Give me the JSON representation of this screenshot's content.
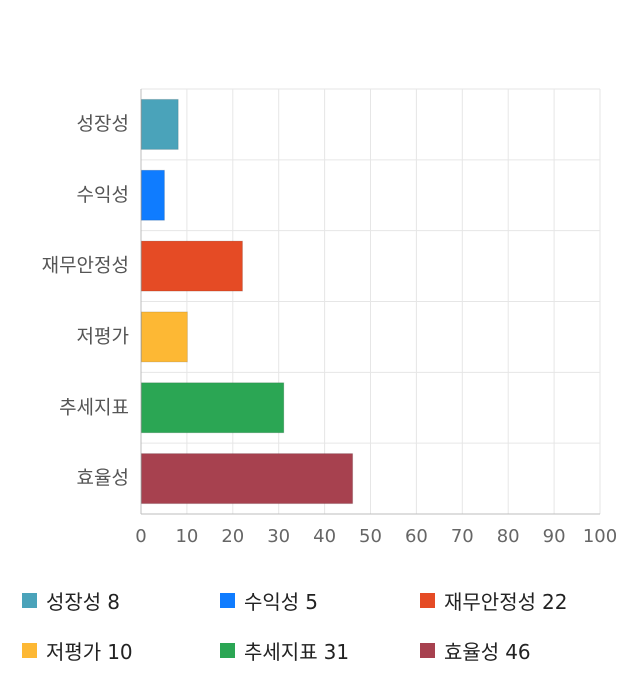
{
  "chart_data": {
    "type": "bar",
    "orientation": "horizontal",
    "categories": [
      "성장성",
      "수익성",
      "재무안정성",
      "저평가",
      "추세지표",
      "효율성"
    ],
    "values": [
      8,
      5,
      22,
      10,
      31,
      46
    ],
    "colors": [
      "#4aa3ba",
      "#0f7cff",
      "#e54b25",
      "#fdb834",
      "#2ba654",
      "#a7414f"
    ],
    "xlim": [
      0,
      100
    ],
    "x_ticks": [
      0,
      10,
      20,
      30,
      40,
      50,
      60,
      70,
      80,
      90,
      100
    ],
    "grid": true,
    "legend_position": "bottom",
    "title": "",
    "xlabel": "",
    "ylabel": ""
  }
}
